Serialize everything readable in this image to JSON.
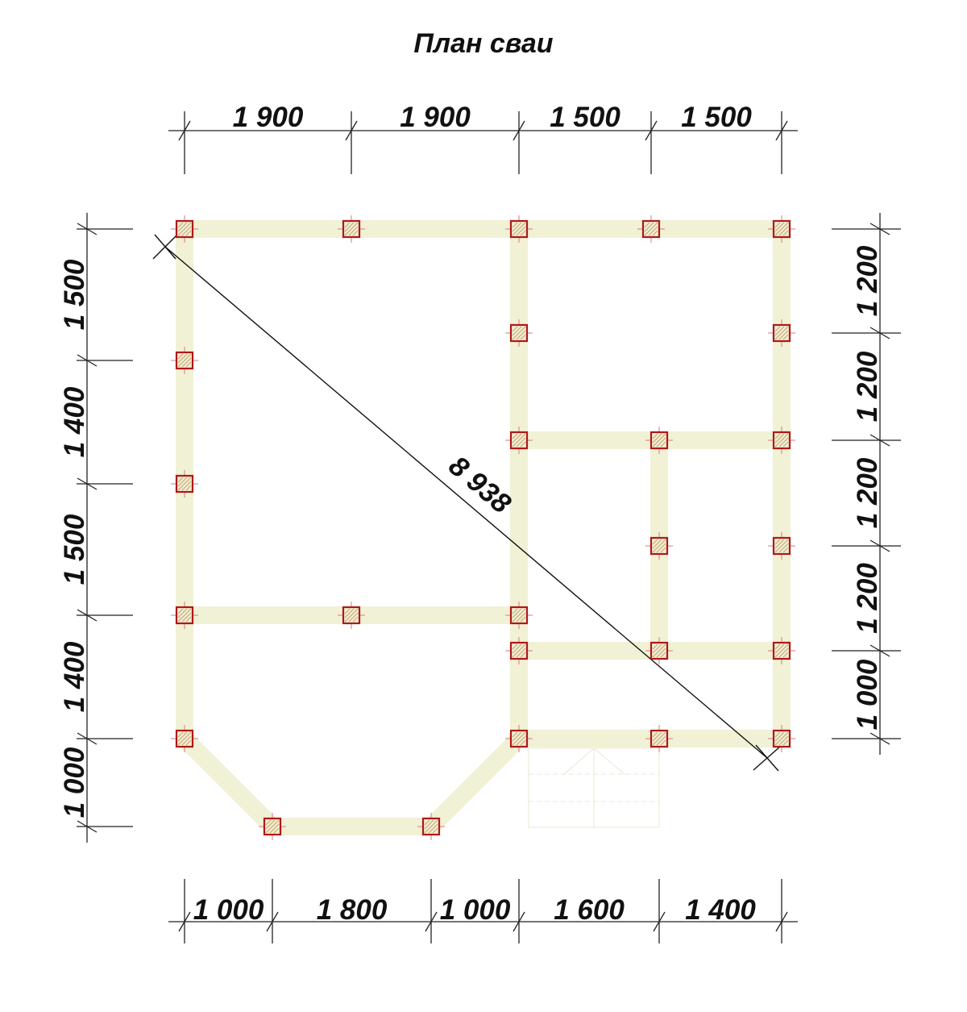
{
  "title": "План сваи",
  "diagonal_label": "8 938",
  "top_dimensions": [
    "1 900",
    "1 900",
    "1 500",
    "1 500"
  ],
  "bottom_dimensions": [
    "1 000",
    "1 800",
    "1 000",
    "1 600",
    "1 400"
  ],
  "left_dimensions": [
    "1 500",
    "1 400",
    "1 500",
    "1 400",
    "1 000"
  ],
  "right_dimensions": [
    "1 200",
    "1 200",
    "1 200",
    "1 200",
    "1 000"
  ],
  "colors": {
    "beam": "#f1f1d6",
    "pile_outline": "#b01818",
    "dimension_line": "#222222"
  }
}
